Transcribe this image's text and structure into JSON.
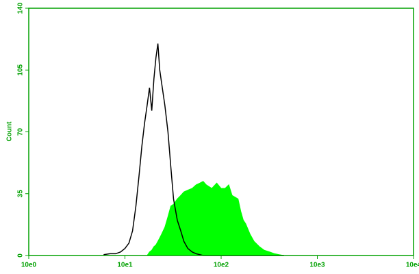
{
  "chart_data": {
    "type": "histogram-overlay",
    "ylabel": "Count",
    "xlog": true,
    "xlim": [
      1,
      10000
    ],
    "xticks": [
      {
        "value": 1,
        "label": "10e0"
      },
      {
        "value": 10,
        "label": "10e1"
      },
      {
        "value": 100,
        "label": "10e2"
      },
      {
        "value": 1000,
        "label": "10e3"
      },
      {
        "value": 10000,
        "label": "10e4"
      }
    ],
    "ylim": [
      0,
      140
    ],
    "yticks": [
      0,
      35,
      70,
      105,
      140
    ],
    "axis_color": "#00a000",
    "x": [
      6,
      7,
      8,
      9,
      10,
      11,
      12,
      13,
      14,
      15,
      16,
      17,
      18,
      19,
      20,
      21,
      22,
      23,
      24,
      26,
      28,
      30,
      32,
      35,
      38,
      41,
      45,
      50,
      55,
      60,
      65,
      70,
      80,
      90,
      100,
      110,
      120,
      130,
      140,
      150,
      160,
      170,
      180,
      200,
      220,
      250,
      280,
      320,
      360,
      400,
      450
    ],
    "series": [
      {
        "style": "area",
        "color": "#00ff00",
        "values": [
          0,
          0,
          0,
          0,
          0,
          0,
          0,
          0,
          0,
          0,
          0,
          0,
          2,
          3,
          5,
          6,
          8,
          10,
          12,
          16,
          22,
          28,
          29,
          32,
          34,
          36,
          37,
          38,
          40,
          41,
          42,
          40,
          38,
          41,
          38,
          38,
          40,
          34,
          33,
          32,
          25,
          20,
          18,
          12,
          8,
          5,
          3,
          2,
          1,
          0.5,
          0
        ]
      },
      {
        "style": "line",
        "color": "#000000",
        "values": [
          0.5,
          1,
          1,
          2,
          4,
          7,
          14,
          28,
          45,
          62,
          75,
          85,
          95,
          82,
          100,
          112,
          120,
          105,
          98,
          85,
          70,
          50,
          32,
          20,
          14,
          8,
          4,
          2,
          1,
          0.5,
          0,
          0,
          0,
          0,
          0,
          0,
          0,
          0,
          0,
          0,
          0,
          0,
          0,
          0,
          0,
          0,
          0,
          0,
          0,
          0,
          0
        ]
      }
    ]
  }
}
